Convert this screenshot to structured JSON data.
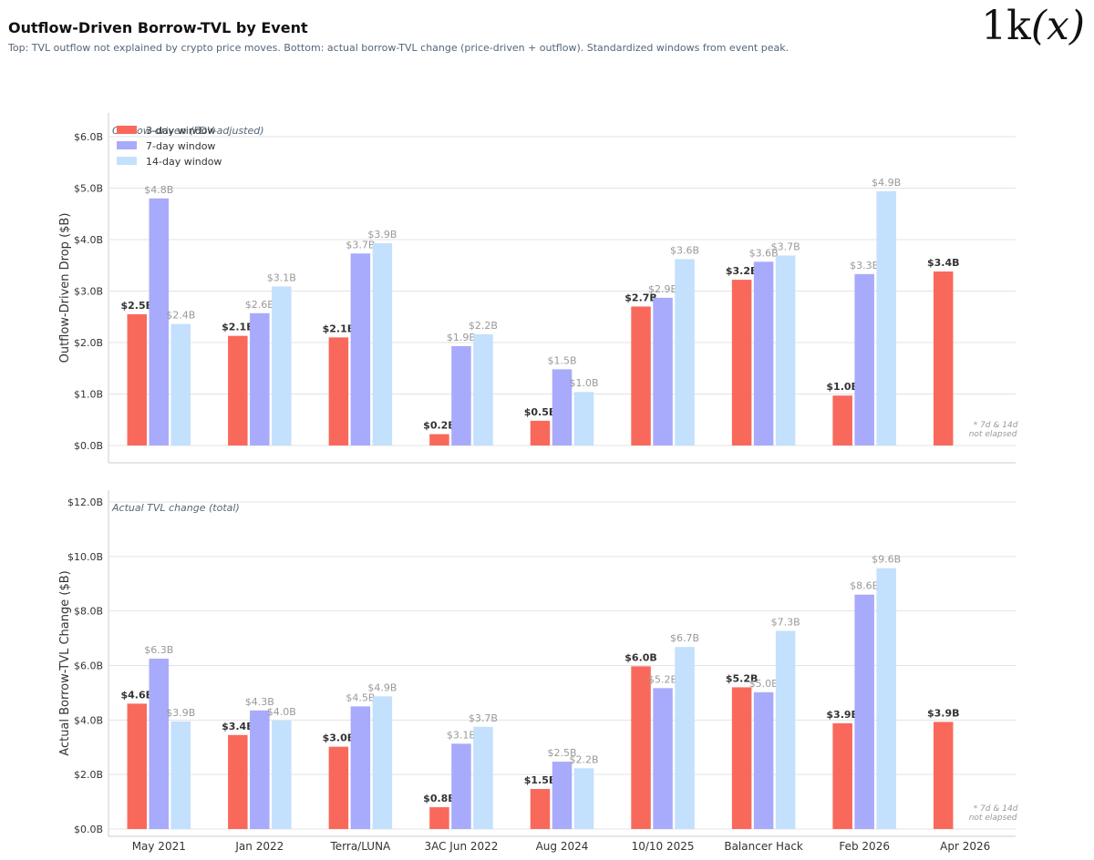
{
  "header": {
    "title": "Outflow-Driven Borrow-TVL by Event",
    "subtitle": "Top: TVL outflow not explained by crypto price moves. Bottom: actual borrow-TVL change (price-driven + outflow). Standardized windows from event peak."
  },
  "logo": {
    "prefix": "1k",
    "var": "(x)"
  },
  "colors": {
    "d3": "#f9695b",
    "d7": "#a8aafb",
    "d14": "#c3e0fc"
  },
  "chart_data": [
    {
      "type": "bar",
      "panel_label": "Outflow-driven (FDV-adjusted)",
      "ylabel": "Outflow-Driven Drop ($B)",
      "ylim": [
        0,
        6
      ],
      "yticks": [
        "$0.0B",
        "$1.0B",
        "$2.0B",
        "$3.0B",
        "$4.0B",
        "$5.0B",
        "$6.0B"
      ],
      "categories": [
        "May 2021",
        "Jan 2022",
        "Terra/LUNA",
        "3AC Jun 2022",
        "Aug 2024",
        "10/10 2025",
        "Balancer Hack",
        "Feb 2026",
        "Apr 2026"
      ],
      "legend": {
        "position": "top-left"
      },
      "series": [
        {
          "name": "3-day window",
          "values": [
            2.55,
            2.13,
            2.1,
            0.22,
            0.48,
            2.7,
            3.22,
            0.97,
            3.38
          ],
          "labels": [
            "$2.5B",
            "$2.1B",
            "$2.1B",
            "$0.2B",
            "$0.5B",
            "$2.7B",
            "$3.2B",
            "$1.0B",
            "$3.4B"
          ]
        },
        {
          "name": "7-day window",
          "values": [
            4.8,
            2.57,
            3.73,
            1.93,
            1.48,
            2.87,
            3.57,
            3.33,
            null
          ],
          "labels": [
            "$4.8B",
            "$2.6B",
            "$3.7B",
            "$1.9B",
            "$1.5B",
            "$2.9B",
            "$3.6B",
            "$3.3B",
            ""
          ]
        },
        {
          "name": "14-day window",
          "values": [
            2.36,
            3.09,
            3.93,
            2.16,
            1.04,
            3.62,
            3.69,
            4.94,
            null
          ],
          "labels": [
            "$2.4B",
            "$3.1B",
            "$3.9B",
            "$2.2B",
            "$1.0B",
            "$3.6B",
            "$3.7B",
            "$4.9B",
            ""
          ]
        }
      ],
      "note": [
        "* 7d & 14d",
        "not elapsed"
      ]
    },
    {
      "type": "bar",
      "panel_label": "Actual TVL change (total)",
      "ylabel": "Actual Borrow-TVL Change ($B)",
      "ylim": [
        0,
        12
      ],
      "yticks": [
        "$0.0B",
        "$2.0B",
        "$4.0B",
        "$6.0B",
        "$8.0B",
        "$10.0B",
        "$12.0B"
      ],
      "categories": [
        "May 2021",
        "Jan 2022",
        "Terra/LUNA",
        "3AC Jun 2022",
        "Aug 2024",
        "10/10 2025",
        "Balancer Hack",
        "Feb 2026",
        "Apr 2026"
      ],
      "series": [
        {
          "name": "3-day window",
          "values": [
            4.6,
            3.45,
            3.02,
            0.8,
            1.47,
            5.97,
            5.2,
            3.88,
            3.93
          ],
          "labels": [
            "$4.6B",
            "$3.4B",
            "$3.0B",
            "$0.8B",
            "$1.5B",
            "$6.0B",
            "$5.2B",
            "$3.9B",
            "$3.9B"
          ]
        },
        {
          "name": "7-day window",
          "values": [
            6.25,
            4.35,
            4.5,
            3.13,
            2.47,
            5.17,
            5.02,
            8.6,
            null
          ],
          "labels": [
            "$6.3B",
            "$4.3B",
            "$4.5B",
            "$3.1B",
            "$2.5B",
            "$5.2B",
            "$5.0B",
            "$8.6B",
            ""
          ]
        },
        {
          "name": "14-day window",
          "values": [
            3.95,
            3.98,
            4.87,
            3.75,
            2.23,
            6.68,
            7.27,
            9.57,
            null
          ],
          "labels": [
            "$3.9B",
            "$4.0B",
            "$4.9B",
            "$3.7B",
            "$2.2B",
            "$6.7B",
            "$7.3B",
            "$9.6B",
            ""
          ]
        }
      ],
      "note": [
        "* 7d & 14d",
        "not elapsed"
      ]
    }
  ]
}
